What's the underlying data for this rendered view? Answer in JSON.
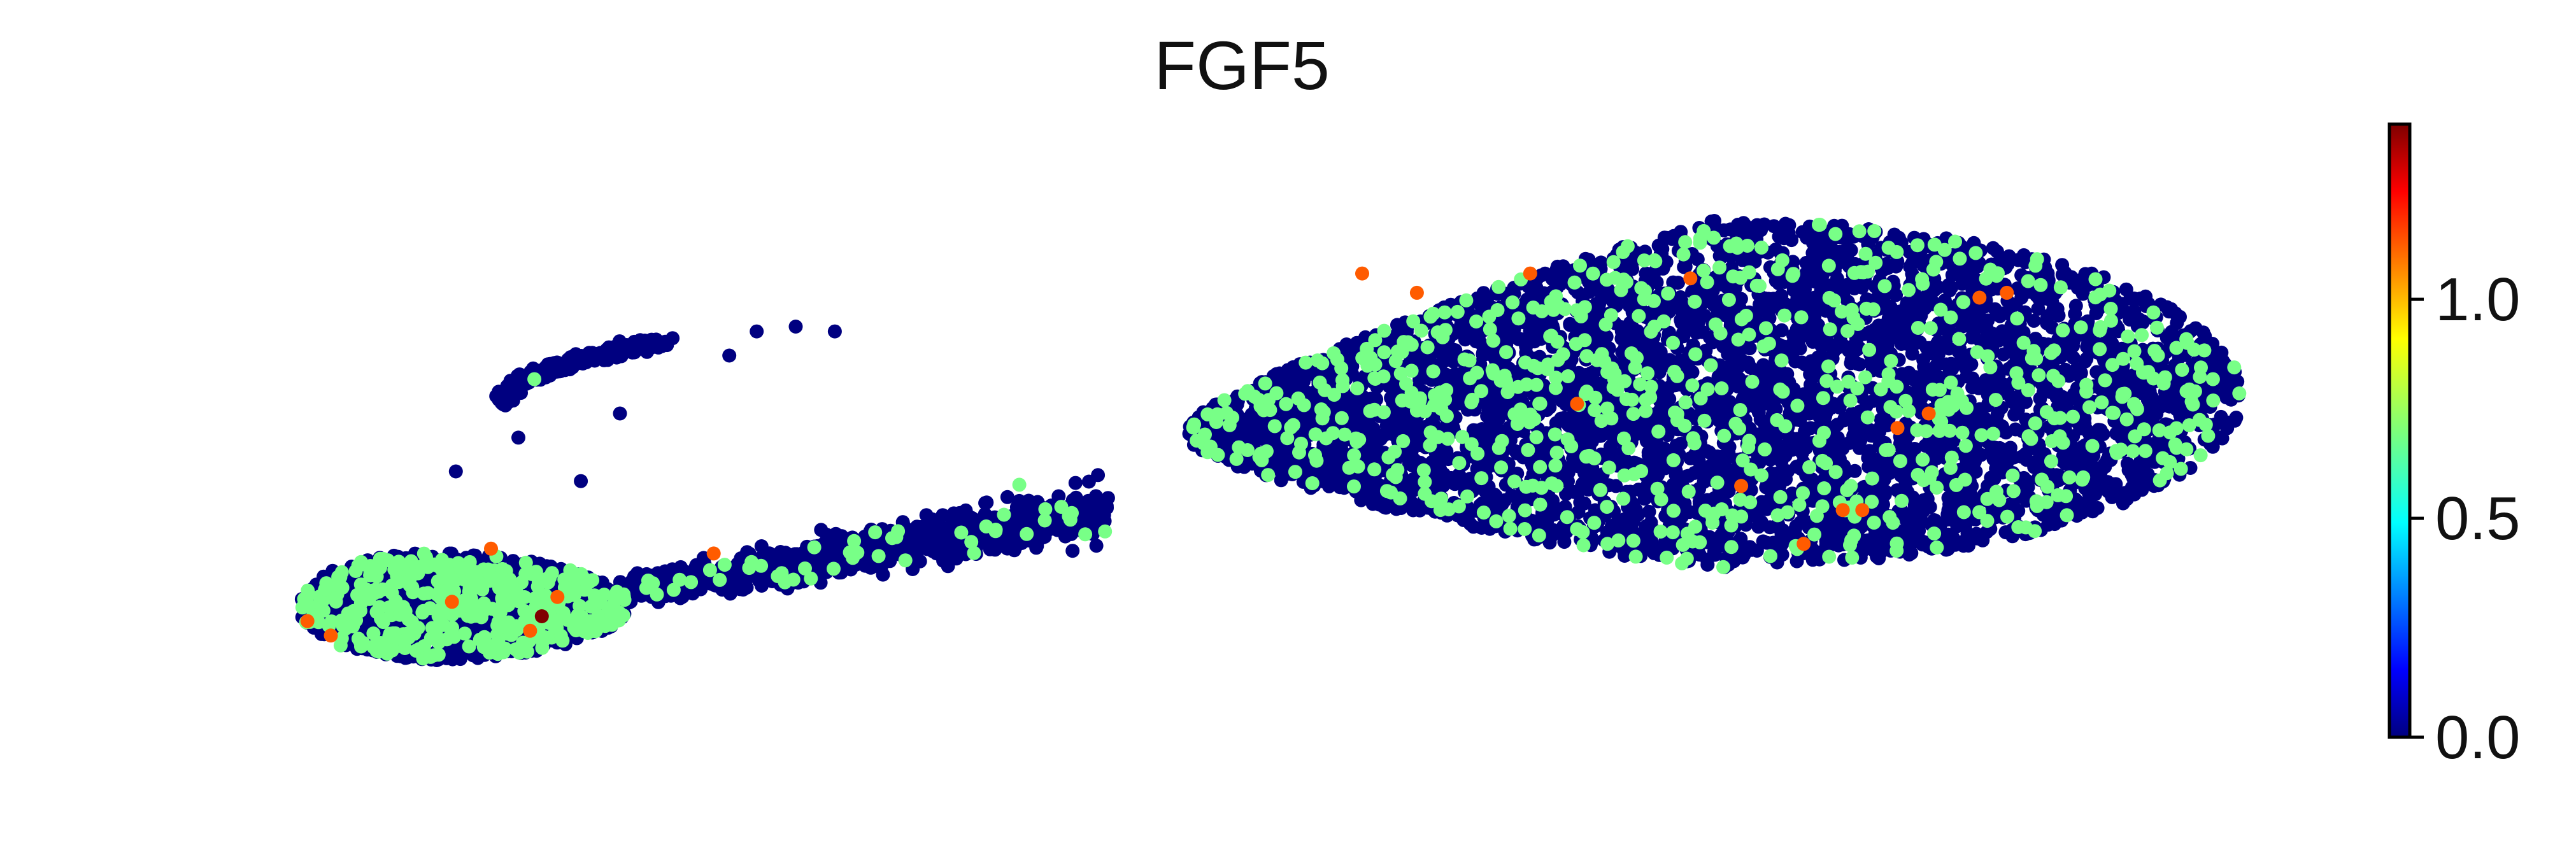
{
  "chart_data": {
    "type": "scatter",
    "title": "FGF5",
    "xlabel": "",
    "ylabel": "",
    "grid": false,
    "axes_visible": false,
    "colormap": "jet",
    "colorbar": {
      "vmin": 0.0,
      "vmax": 1.4,
      "ticks": [
        0.0,
        0.5,
        1.0
      ],
      "tick_labels": [
        "0.0",
        "0.5",
        "1.0"
      ],
      "placement": "right"
    },
    "point_color_levels": [
      {
        "level": 0.0,
        "color": "#00007f",
        "share": "majority"
      },
      {
        "level": 0.69,
        "color": "#7dff7a",
        "share": "minority"
      },
      {
        "level": 1.1,
        "color": "#ff5a00",
        "share": "few"
      },
      {
        "level": 1.4,
        "color": "#7f0000",
        "share": "single"
      }
    ],
    "embedding_regions": [
      {
        "name": "left-lobe",
        "cx": 8.0,
        "cy": 2.6,
        "rx": 4.2,
        "ry": 1.1
      },
      {
        "name": "bridge",
        "from": [
          12.0,
          2.9
        ],
        "to": [
          24.5,
          4.6
        ]
      },
      {
        "name": "upper-branch",
        "from": [
          9.0,
          6.8
        ],
        "to": [
          13.2,
          8.1
        ]
      },
      {
        "name": "right-lobe",
        "cx": 40.0,
        "cy": 7.0,
        "rx": 13.5,
        "ry": 3.6
      }
    ],
    "highlighted_points": [
      {
        "x": 4.0,
        "y": 2.3,
        "value": 1.1
      },
      {
        "x": 4.6,
        "y": 2.0,
        "value": 1.1
      },
      {
        "x": 7.7,
        "y": 2.7,
        "value": 1.1
      },
      {
        "x": 8.7,
        "y": 3.8,
        "value": 1.1
      },
      {
        "x": 9.7,
        "y": 2.1,
        "value": 1.1
      },
      {
        "x": 10.4,
        "y": 2.8,
        "value": 1.1
      },
      {
        "x": 10.0,
        "y": 2.4,
        "value": 1.4
      },
      {
        "x": 14.4,
        "y": 3.7,
        "value": 1.1
      },
      {
        "x": 31.0,
        "y": 9.5,
        "value": 1.1
      },
      {
        "x": 32.4,
        "y": 9.1,
        "value": 1.1
      },
      {
        "x": 35.3,
        "y": 9.5,
        "value": 1.1
      },
      {
        "x": 36.5,
        "y": 6.8,
        "value": 1.1
      },
      {
        "x": 39.4,
        "y": 9.4,
        "value": 1.1
      },
      {
        "x": 40.7,
        "y": 5.1,
        "value": 1.1
      },
      {
        "x": 42.3,
        "y": 3.9,
        "value": 1.1
      },
      {
        "x": 43.3,
        "y": 4.6,
        "value": 1.1
      },
      {
        "x": 43.8,
        "y": 4.6,
        "value": 1.1
      },
      {
        "x": 44.7,
        "y": 6.3,
        "value": 1.1
      },
      {
        "x": 45.5,
        "y": 6.6,
        "value": 1.1
      },
      {
        "x": 46.8,
        "y": 9.0,
        "value": 1.1
      },
      {
        "x": 47.5,
        "y": 9.1,
        "value": 1.1
      }
    ]
  }
}
